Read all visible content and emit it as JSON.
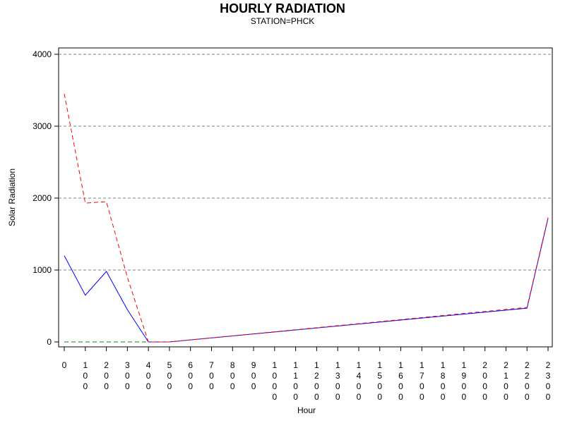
{
  "chart_data": {
    "type": "line",
    "title": "HOURLY RADIATION",
    "subtitle": "STATION=PHCK",
    "xlabel": "Hour",
    "ylabel": "Solar Radiation",
    "ylim": [
      -80,
      4080
    ],
    "yticks": [
      0,
      1000,
      2000,
      3000,
      4000
    ],
    "xticks": [
      0,
      100,
      200,
      300,
      400,
      500,
      600,
      700,
      800,
      900,
      1000,
      1100,
      1200,
      1300,
      1400,
      1500,
      1600,
      1700,
      1800,
      1900,
      2000,
      2100,
      2200,
      2300
    ],
    "grid": "horizontal dashed",
    "series": [
      {
        "color": "#0000ff",
        "dash": "solid",
        "x": [
          0,
          100,
          200,
          300,
          400,
          500,
          2200,
          2300
        ],
        "values": [
          1200,
          650,
          980,
          450,
          0,
          0,
          470,
          1720
        ]
      },
      {
        "color": "#ff0000",
        "dash": "dashed",
        "x": [
          0,
          100,
          200,
          300,
          400,
          500,
          2200,
          2300
        ],
        "values": [
          3450,
          1930,
          1950,
          900,
          0,
          0,
          480,
          1730
        ]
      },
      {
        "color": "#008000",
        "dash": "dashed",
        "x": [
          0,
          100,
          200,
          300,
          400
        ],
        "values": [
          0,
          0,
          0,
          0,
          0
        ]
      }
    ]
  }
}
